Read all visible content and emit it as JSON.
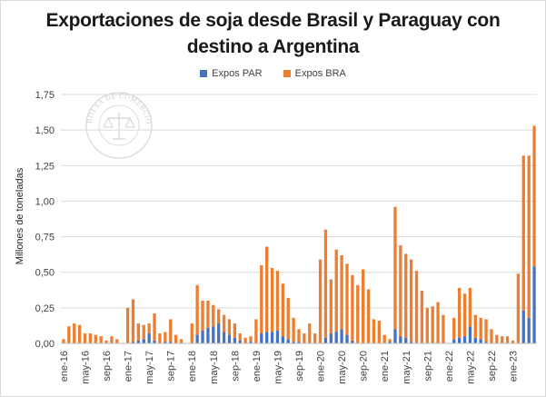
{
  "chart_data": {
    "type": "bar",
    "stacked": true,
    "title": "Exportaciones de soja desde Brasil y Paraguay con destino a Argentina",
    "title_lines": [
      "Exportaciones de soja desde Brasil y Paraguay con",
      "destino a Argentina"
    ],
    "ylabel": "Millones de toneladas",
    "ylim": [
      0,
      1.75
    ],
    "yticks": [
      "0,00",
      "0,25",
      "0,50",
      "0,75",
      "1,00",
      "1,25",
      "1,50",
      "1,75"
    ],
    "grid": true,
    "legend_position": "top",
    "x_start": "2016-01",
    "xtick_labels": [
      "ene-16",
      "may-16",
      "sep-16",
      "ene-17",
      "may-17",
      "sep-17",
      "ene-18",
      "may-18",
      "sep-18",
      "ene-19",
      "may-19",
      "sep-19",
      "ene-20",
      "may-20",
      "sep-20",
      "ene-21",
      "may-21",
      "sep-21",
      "ene-22",
      "may-22",
      "sep-22",
      "ene-23"
    ],
    "series": [
      {
        "name": "Expos PAR",
        "color": "#4472c4",
        "values": [
          0,
          0,
          0,
          0,
          0,
          0,
          0,
          0,
          0,
          0,
          0,
          0,
          0,
          0.01,
          0.02,
          0.03,
          0.07,
          0.02,
          0,
          0.01,
          0.01,
          0,
          0,
          0,
          0,
          0.06,
          0.09,
          0.11,
          0.12,
          0.14,
          0.08,
          0.06,
          0.04,
          0.02,
          0,
          0.01,
          0,
          0.07,
          0.08,
          0.08,
          0.09,
          0.05,
          0.03,
          0.01,
          0.01,
          0,
          0,
          0,
          0,
          0.04,
          0.07,
          0.08,
          0.1,
          0.06,
          0.02,
          0,
          0,
          0,
          0,
          0,
          0,
          0.01,
          0.1,
          0.05,
          0.04,
          0.01,
          0,
          0,
          0,
          0,
          0,
          0,
          0,
          0.03,
          0.04,
          0.05,
          0.12,
          0.04,
          0.03,
          0.01,
          0,
          0,
          0,
          0,
          0,
          0,
          0.23,
          0.18,
          0.54
        ]
      },
      {
        "name": "Expos BRA",
        "color": "#ed7d31",
        "values": [
          0.03,
          0.12,
          0.14,
          0.13,
          0.07,
          0.07,
          0.06,
          0.05,
          0.02,
          0.05,
          0.03,
          0,
          0.25,
          0.3,
          0.12,
          0.1,
          0.07,
          0.19,
          0.07,
          0.07,
          0.16,
          0.06,
          0.03,
          0,
          0.14,
          0.35,
          0.21,
          0.19,
          0.15,
          0.1,
          0.12,
          0.11,
          0.1,
          0.05,
          0.04,
          0.04,
          0.17,
          0.48,
          0.6,
          0.45,
          0.42,
          0.37,
          0.29,
          0.17,
          0.09,
          0.07,
          0.14,
          0.07,
          0.59,
          0.76,
          0.38,
          0.58,
          0.52,
          0.5,
          0.46,
          0.41,
          0.52,
          0.38,
          0.17,
          0.16,
          0.06,
          0.02,
          0.86,
          0.64,
          0.59,
          0.58,
          0.51,
          0.37,
          0.25,
          0.26,
          0.29,
          0.2,
          0,
          0.15,
          0.35,
          0.3,
          0.27,
          0.16,
          0.15,
          0.16,
          0.1,
          0.06,
          0.05,
          0.05,
          0.02,
          0.49,
          1.09,
          1.14,
          0.99
        ]
      }
    ]
  },
  "watermark": {
    "text": "BOLSA DE COMERCIO DE ROSARIO"
  }
}
